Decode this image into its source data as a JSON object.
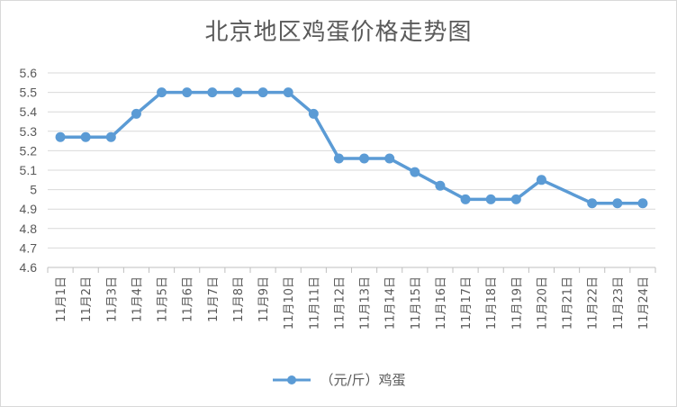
{
  "chart_data": {
    "type": "line",
    "title": "北京地区鸡蛋价格走势图",
    "categories": [
      "11月1日",
      "11月2日",
      "11月3日",
      "11月4日",
      "11月5日",
      "11月6日",
      "11月7日",
      "11月8日",
      "11月9日",
      "11月10日",
      "11月11日",
      "11月12日",
      "11月13日",
      "11月14日",
      "11月15日",
      "11月16日",
      "11月17日",
      "11月18日",
      "11月19日",
      "11月20日",
      "11月21日",
      "11月22日",
      "11月23日",
      "11月24日"
    ],
    "series": [
      {
        "name": "（元/斤）鸡蛋",
        "values": [
          5.27,
          5.27,
          5.27,
          5.39,
          5.5,
          5.5,
          5.5,
          5.5,
          5.5,
          5.5,
          5.39,
          5.16,
          5.16,
          5.16,
          5.09,
          5.02,
          4.95,
          4.95,
          4.95,
          5.05,
          null,
          4.93,
          4.93,
          4.93
        ],
        "color": "#5b9bd5"
      }
    ],
    "yticks": [
      "4.6",
      "4.7",
      "4.8",
      "4.9",
      "5",
      "5.1",
      "5.2",
      "5.3",
      "5.4",
      "5.5",
      "5.6"
    ],
    "ylim": [
      4.6,
      5.6
    ],
    "grid": true,
    "legend_position": "bottom",
    "gap_handling": "connect"
  }
}
